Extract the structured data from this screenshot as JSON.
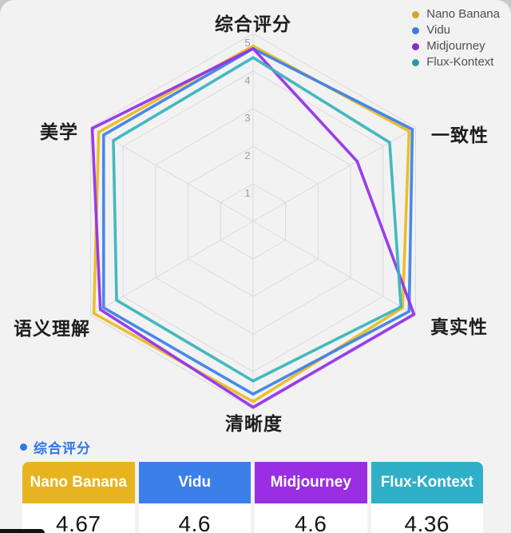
{
  "page": {
    "background": "#c9c9cc",
    "card_background": "#f2f2f3"
  },
  "legend": {
    "items": [
      {
        "label": "Nano Banana",
        "color": "#d0a72c"
      },
      {
        "label": "Vidu",
        "color": "#3b7fe0"
      },
      {
        "label": "Midjourney",
        "color": "#9029c8"
      },
      {
        "label": "Flux-Kontext",
        "color": "#2d9aa3"
      }
    ]
  },
  "chart_data": {
    "type": "radar",
    "axes": [
      "综合评分",
      "一致性",
      "真实性",
      "清晰度",
      "语义理解",
      "美学"
    ],
    "scale": {
      "min": 0,
      "max": 5,
      "ticks": [
        1,
        2,
        3,
        4,
        5
      ]
    },
    "grid": true,
    "grid_color": "#d9d9db",
    "tick_label_color": "#9b9b9b",
    "legend_position": "top-right",
    "series": [
      {
        "name": "Nano Banana",
        "color": "#e9bc23",
        "values": [
          4.67,
          4.8,
          4.6,
          4.8,
          4.9,
          4.75
        ]
      },
      {
        "name": "Vidu",
        "color": "#3f82e8",
        "values": [
          4.6,
          4.9,
          4.8,
          4.6,
          4.6,
          4.6
        ]
      },
      {
        "name": "Midjourney",
        "color": "#9333ea",
        "values": [
          4.6,
          3.2,
          4.95,
          4.95,
          4.7,
          4.95
        ]
      },
      {
        "name": "Flux-Kontext",
        "color": "#3ab4bd",
        "values": [
          4.36,
          4.2,
          4.55,
          4.25,
          4.2,
          4.3
        ]
      }
    ]
  },
  "summary": {
    "title": "综合评分",
    "bullet_color": "#3076e8",
    "title_color": "#3076e8",
    "table": {
      "columns": [
        {
          "name": "Nano Banana",
          "header_color": "#e7b41f",
          "value": "4.67"
        },
        {
          "name": "Vidu",
          "header_color": "#3b7fe8",
          "value": "4.6"
        },
        {
          "name": "Midjourney",
          "header_color": "#9a2ee2",
          "value": "4.6"
        },
        {
          "name": "Flux-Kontext",
          "header_color": "#2fb0c8",
          "value": "4.36"
        }
      ]
    }
  }
}
